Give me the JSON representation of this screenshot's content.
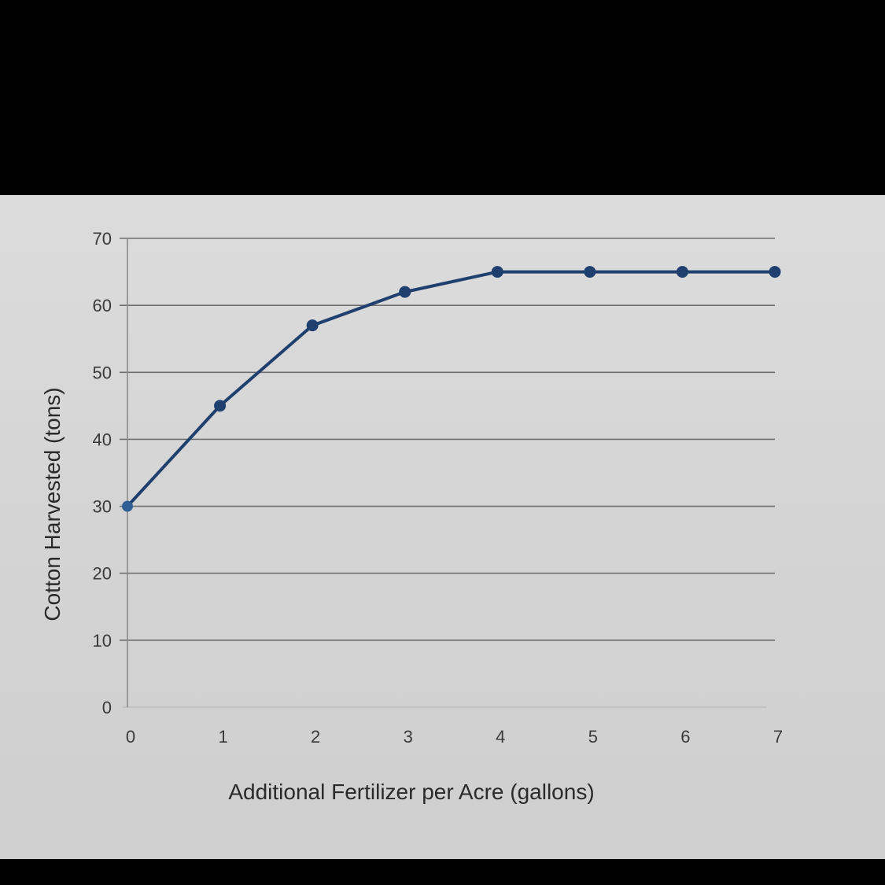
{
  "chart_data": {
    "type": "line",
    "title": "",
    "xlabel": "Additional Fertilizer per Acre (gallons)",
    "ylabel": "Cotton Harvested (tons)",
    "x": [
      0,
      1,
      2,
      3,
      4,
      5,
      6,
      7
    ],
    "series": [
      {
        "values": [
          30,
          45,
          57,
          62,
          65,
          65,
          65,
          65
        ],
        "color": "#1f3f6e"
      }
    ],
    "xlim": [
      0,
      7
    ],
    "ylim": [
      0,
      70
    ],
    "x_ticks": [
      "0",
      "1",
      "2",
      "3",
      "4",
      "5",
      "6",
      "7"
    ],
    "y_ticks": [
      "0",
      "10",
      "20",
      "30",
      "40",
      "50",
      "60",
      "70"
    ],
    "grid": true,
    "legend": "none",
    "gridline_color": "#6f6f6f"
  }
}
